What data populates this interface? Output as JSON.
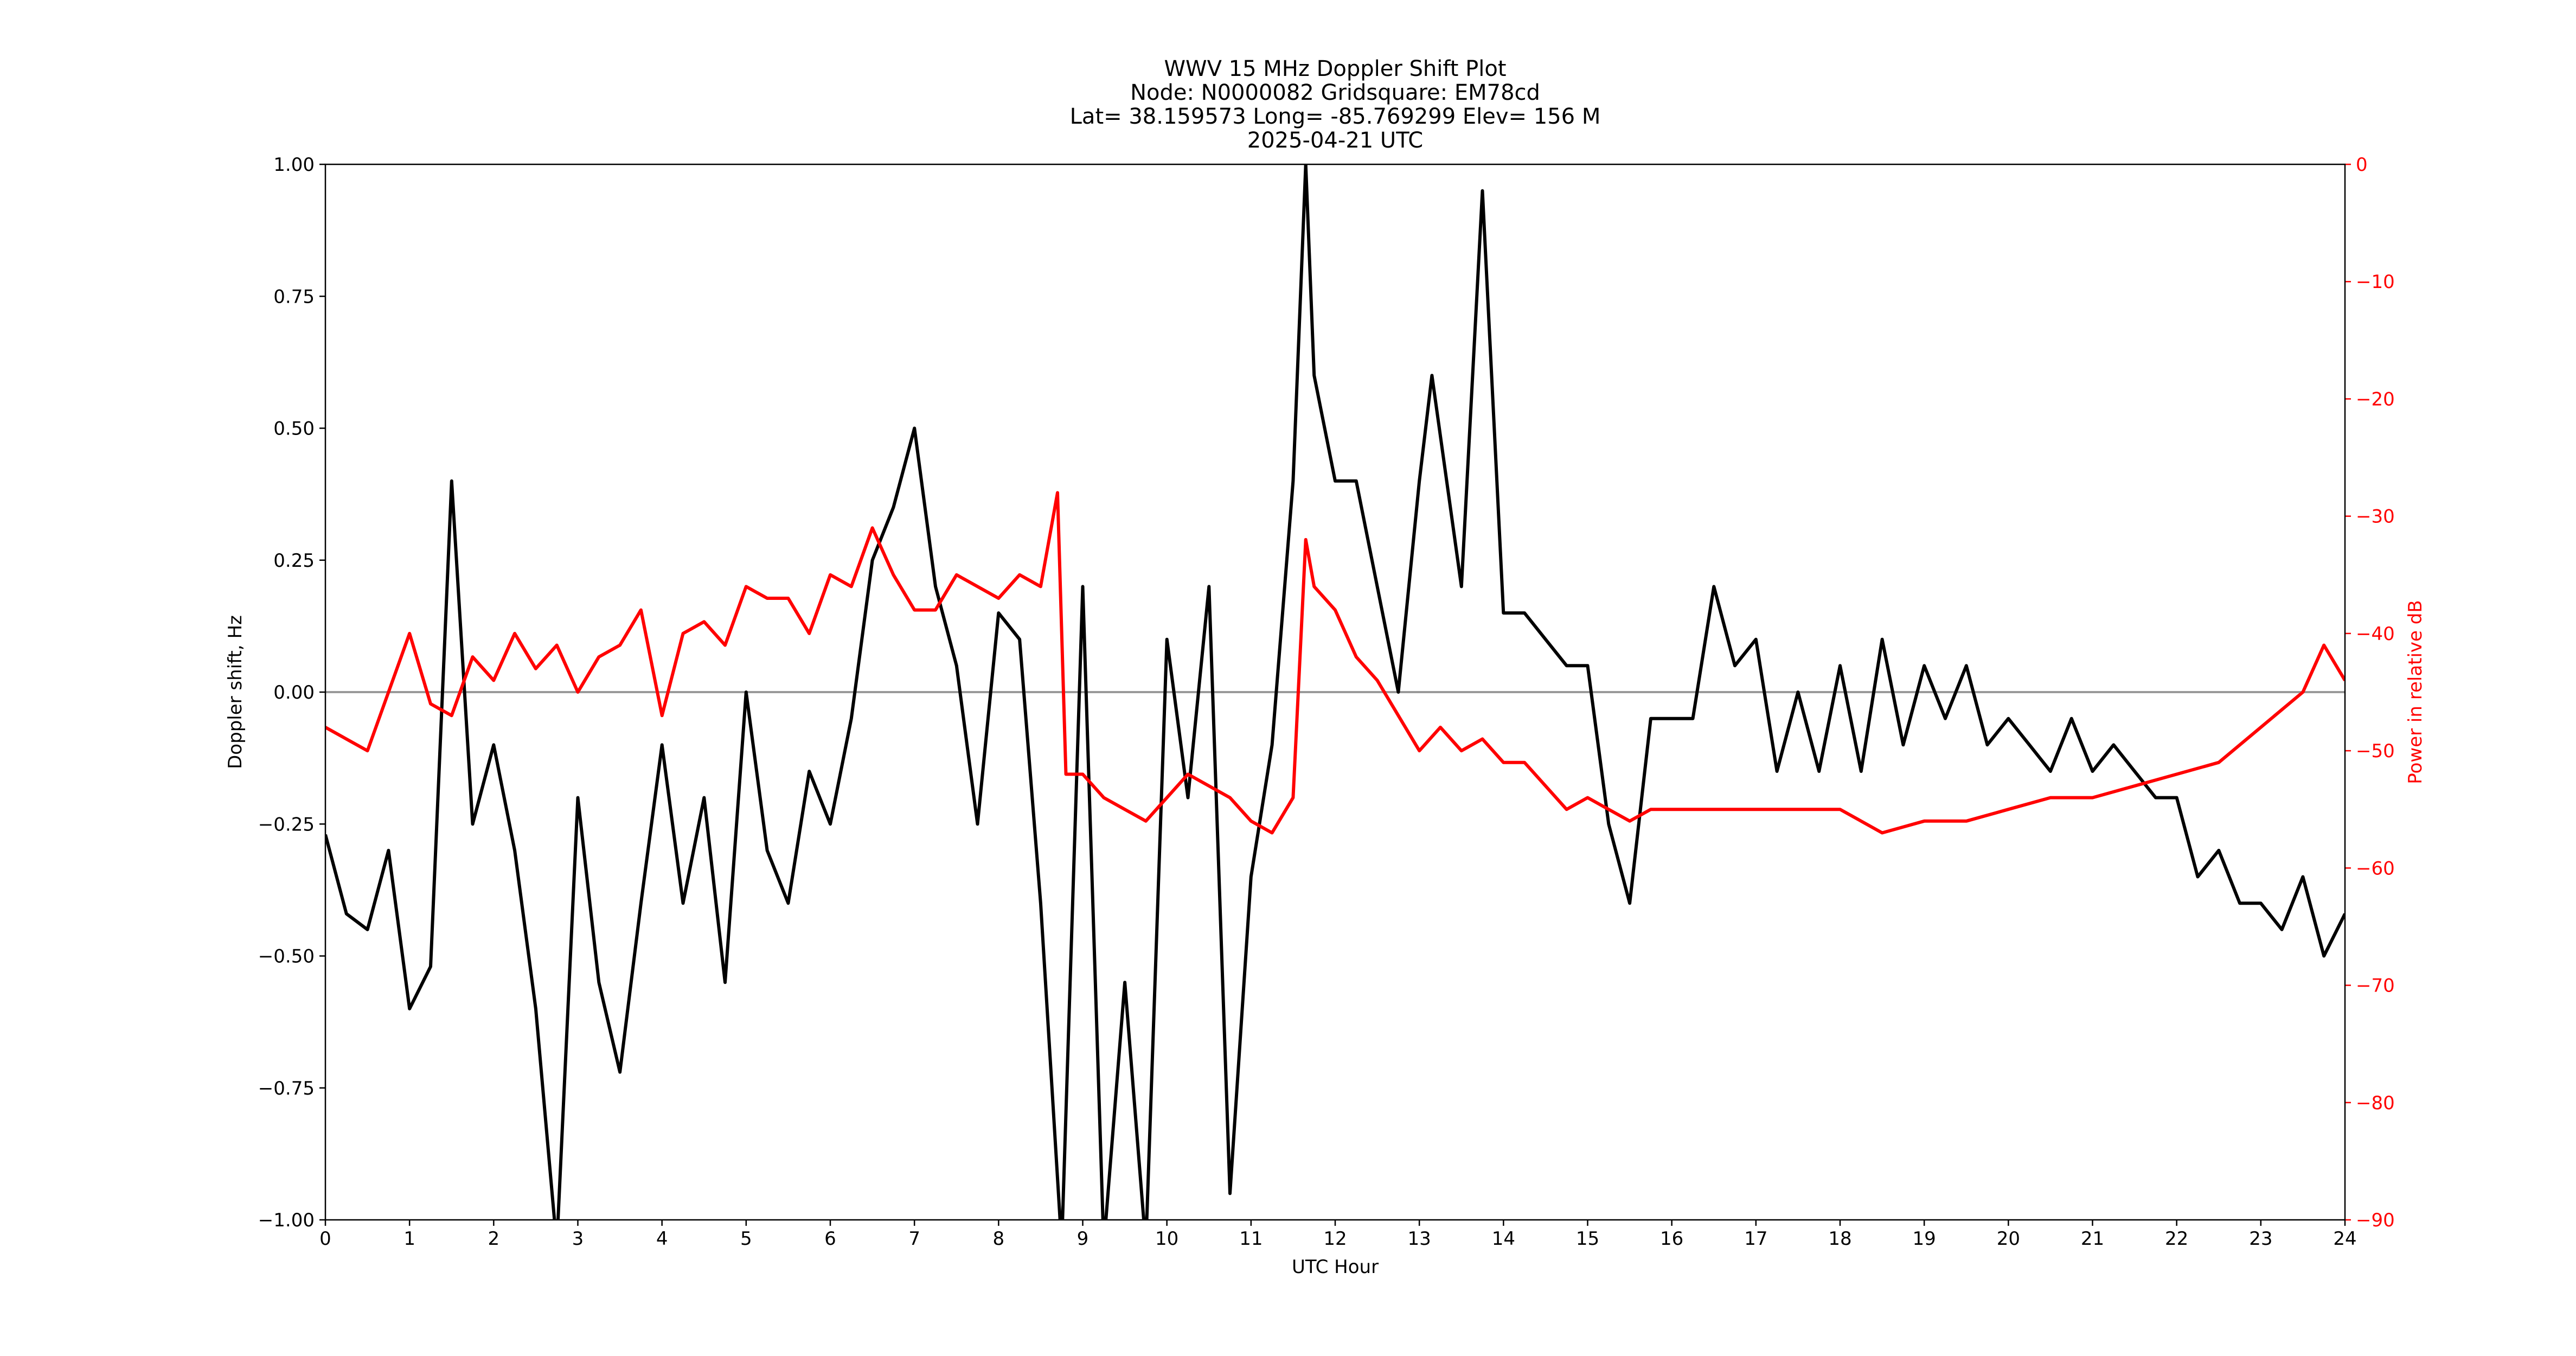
{
  "chart_data": {
    "type": "line",
    "title": [
      "WWV 15 MHz Doppler Shift Plot",
      "Node:  N0000082     Gridsquare:  EM78cd",
      "Lat= 38.159573    Long= -85.769299    Elev= 156 M",
      "2025-04-21  UTC"
    ],
    "xlabel": "UTC Hour",
    "ylabel": "Doppler shift, Hz",
    "y2label": "Power in relative dB",
    "y2color": "#ff0000",
    "xlim": [
      0,
      24
    ],
    "xticks": [
      0,
      1,
      2,
      3,
      4,
      5,
      6,
      7,
      8,
      9,
      10,
      11,
      12,
      13,
      14,
      15,
      16,
      17,
      18,
      19,
      20,
      21,
      22,
      23,
      24
    ],
    "ylim": [
      -1,
      1
    ],
    "yticks": [
      {
        "value": -1,
        "label": "−1.00"
      },
      {
        "value": -0.75,
        "label": "−0.75"
      },
      {
        "value": -0.5,
        "label": "−0.50"
      },
      {
        "value": -0.25,
        "label": "−0.25"
      },
      {
        "value": 0,
        "label": "0.00"
      },
      {
        "value": 0.25,
        "label": "0.25"
      },
      {
        "value": 0.5,
        "label": "0.50"
      },
      {
        "value": 0.75,
        "label": "0.75"
      },
      {
        "value": 1,
        "label": "1.00"
      }
    ],
    "y2lim": [
      -90,
      0
    ],
    "y2ticks": [
      {
        "value": -90,
        "label": "−90"
      },
      {
        "value": -80,
        "label": "−80"
      },
      {
        "value": -70,
        "label": "−70"
      },
      {
        "value": -60,
        "label": "−60"
      },
      {
        "value": -50,
        "label": "−50"
      },
      {
        "value": -40,
        "label": "−40"
      },
      {
        "value": -30,
        "label": "−30"
      },
      {
        "value": -20,
        "label": "−20"
      },
      {
        "value": -10,
        "label": "−10"
      },
      0
    ],
    "hline": 0,
    "hline_color": "#999999",
    "series": [
      {
        "color": "#000000",
        "x": [
          0,
          0.25,
          0.5,
          0.75,
          1,
          1.25,
          1.5,
          1.75,
          2,
          2.25,
          2.5,
          2.75,
          3,
          3.25,
          3.5,
          3.75,
          4,
          4.25,
          4.5,
          4.75,
          5,
          5.25,
          5.5,
          5.75,
          6,
          6.25,
          6.5,
          6.75,
          7,
          7.25,
          7.5,
          7.75,
          8,
          8.25,
          8.5,
          8.75,
          9,
          9.25,
          9.5,
          9.75,
          10,
          10.25,
          10.5,
          10.75,
          11,
          11.25,
          11.5,
          11.65,
          11.75,
          12,
          12.25,
          12.5,
          12.75,
          13,
          13.15,
          13.5,
          13.75,
          14,
          14.25,
          14.5,
          14.75,
          15,
          15.25,
          15.5,
          15.75,
          16,
          16.25,
          16.5,
          16.75,
          17,
          17.25,
          17.5,
          17.75,
          18,
          18.25,
          18.5,
          18.75,
          19,
          19.25,
          19.5,
          19.75,
          20,
          20.25,
          20.5,
          20.75,
          21,
          21.25,
          21.5,
          21.75,
          22,
          22.25,
          22.5,
          22.75,
          23,
          23.25,
          23.5,
          23.75,
          24
        ],
        "values": [
          -0.27,
          -0.42,
          -0.45,
          -0.3,
          -0.6,
          -0.52,
          0.4,
          -0.25,
          -0.1,
          -0.3,
          -0.6,
          -1.05,
          -0.2,
          -0.55,
          -0.72,
          -0.4,
          -0.1,
          -0.4,
          -0.2,
          -0.55,
          0,
          -0.3,
          -0.4,
          -0.15,
          -0.25,
          -0.05,
          0.25,
          0.35,
          0.5,
          0.2,
          0.05,
          -0.25,
          0.15,
          0.1,
          -0.4,
          -1.05,
          0.2,
          -1.05,
          -0.55,
          -1.05,
          0.1,
          -0.2,
          0.2,
          -0.95,
          -0.35,
          -0.1,
          0.4,
          1.0,
          0.6,
          0.4,
          0.4,
          0.2,
          0,
          0.4,
          0.6,
          0.2,
          0.95,
          0.15,
          0.15,
          0.1,
          0.05,
          0.05,
          -0.25,
          -0.4,
          -0.05,
          -0.05,
          -0.05,
          0.2,
          0.05,
          0.1,
          -0.15,
          0,
          -0.15,
          0.05,
          -0.15,
          0.1,
          -0.1,
          0.05,
          -0.05,
          0.05,
          -0.1,
          -0.05,
          -0.1,
          -0.15,
          -0.05,
          -0.15,
          -0.1,
          -0.15,
          -0.2,
          -0.2,
          -0.35,
          -0.3,
          -0.4,
          -0.4,
          -0.45,
          -0.35,
          -0.5,
          -0.42
        ]
      },
      {
        "color": "#ff0000",
        "axis": "y2",
        "x": [
          0,
          0.5,
          0.75,
          1,
          1.25,
          1.5,
          1.75,
          2,
          2.25,
          2.5,
          2.75,
          3,
          3.25,
          3.5,
          3.75,
          4,
          4.25,
          4.5,
          4.75,
          5,
          5.25,
          5.5,
          5.75,
          6,
          6.25,
          6.5,
          6.75,
          7,
          7.25,
          7.5,
          7.75,
          8,
          8.25,
          8.5,
          8.7,
          8.8,
          9,
          9.25,
          9.5,
          9.75,
          10,
          10.25,
          10.5,
          10.75,
          11,
          11.25,
          11.5,
          11.65,
          11.75,
          12,
          12.25,
          12.5,
          12.75,
          13,
          13.25,
          13.5,
          13.75,
          14,
          14.25,
          14.5,
          14.75,
          15,
          15.25,
          15.5,
          15.75,
          16,
          16.5,
          17,
          17.5,
          18,
          18.5,
          19,
          19.5,
          20,
          20.5,
          21,
          21.5,
          22,
          22.5,
          23,
          23.5,
          23.75,
          24
        ],
        "values": [
          -48,
          -50,
          -45,
          -40,
          -46,
          -47,
          -42,
          -44,
          -40,
          -43,
          -41,
          -45,
          -42,
          -41,
          -38,
          -47,
          -40,
          -39,
          -41,
          -36,
          -37,
          -37,
          -40,
          -35,
          -36,
          -31,
          -35,
          -38,
          -38,
          -35,
          -36,
          -37,
          -35,
          -36,
          -28,
          -52,
          -52,
          -54,
          -55,
          -56,
          -54,
          -52,
          -53,
          -54,
          -56,
          -57,
          -54,
          -32,
          -36,
          -38,
          -42,
          -44,
          -47,
          -50,
          -48,
          -50,
          -49,
          -51,
          -51,
          -53,
          -55,
          -54,
          -55,
          -56,
          -55,
          -55,
          -55,
          -55,
          -55,
          -55,
          -57,
          -56,
          -56,
          -55,
          -54,
          -54,
          -53,
          -52,
          -51,
          -48,
          -45,
          -41,
          -44
        ]
      }
    ]
  }
}
